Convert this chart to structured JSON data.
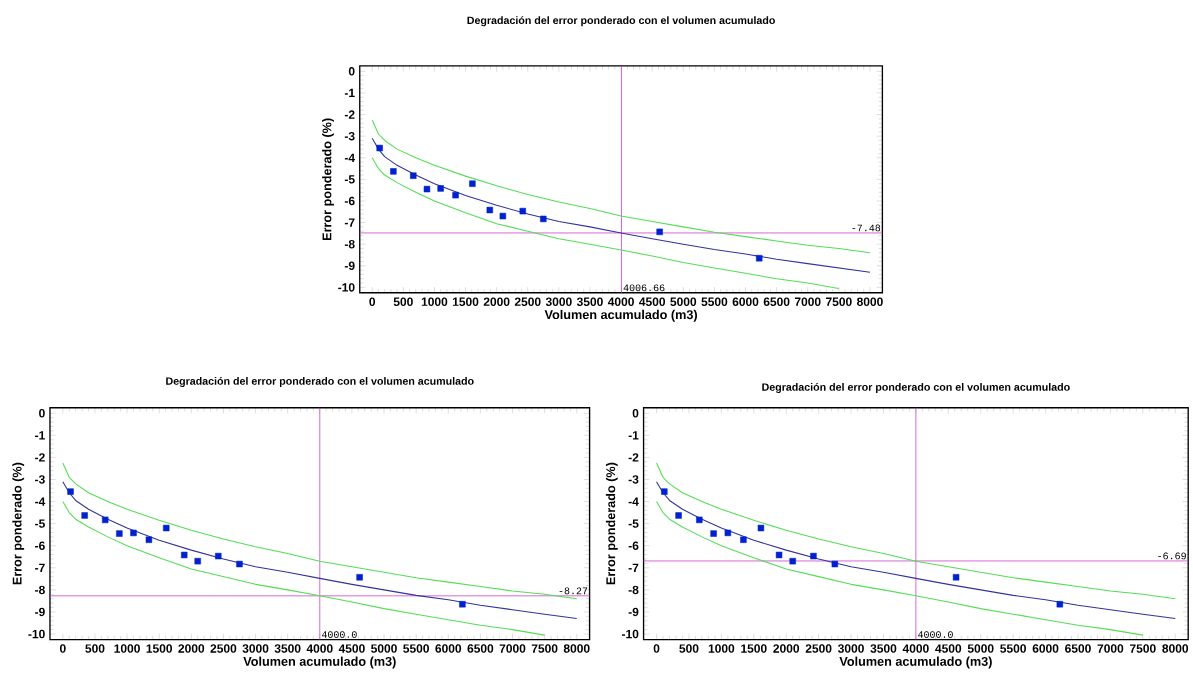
{
  "chart_data": [
    {
      "type": "scatter",
      "title": "Degradación del error ponderado con el volumen acumulado",
      "xlabel": "Volumen acumulado (m3)",
      "ylabel": "Error ponderado (%)",
      "xlim": [
        -200,
        8200
      ],
      "ylim": [
        -10.25,
        0.25
      ],
      "xticks": [
        0,
        500,
        1000,
        1500,
        2000,
        2500,
        3000,
        3500,
        4000,
        4500,
        5000,
        5500,
        6000,
        6500,
        7000,
        7500,
        8000
      ],
      "yticks": [
        -10,
        -9,
        -8,
        -7,
        -6,
        -5,
        -4,
        -3,
        -2,
        -1,
        0
      ],
      "series": [
        {
          "marker": "square",
          "color": "#0022cc",
          "x": [
            120,
            340,
            660,
            880,
            1100,
            1340,
            1610,
            1890,
            2100,
            2420,
            2750,
            4620,
            6220
          ],
          "values": [
            -3.55,
            -4.63,
            -4.83,
            -5.45,
            -5.42,
            -5.73,
            -5.2,
            -6.42,
            -6.7,
            -6.47,
            -6.83,
            -7.43,
            -8.65
          ]
        },
        {
          "type": "line",
          "color": "#333399",
          "x": [
            0,
            100,
            200,
            400,
            700,
            1000,
            1500,
            2000,
            2500,
            3000,
            3500,
            4000,
            4500,
            5000,
            5500,
            6000,
            6500,
            7000,
            7500,
            8000
          ],
          "values": [
            -3.1,
            -3.6,
            -3.95,
            -4.35,
            -4.8,
            -5.2,
            -5.75,
            -6.2,
            -6.6,
            -6.95,
            -7.2,
            -7.48,
            -7.75,
            -8.0,
            -8.25,
            -8.45,
            -8.7,
            -8.9,
            -9.1,
            -9.3
          ]
        },
        {
          "type": "line",
          "color": "#55dd55",
          "x": [
            0,
            100,
            200,
            400,
            700,
            1000,
            1500,
            2000,
            2500,
            3000,
            3500,
            4000,
            4500,
            5000,
            5500,
            6000,
            6500,
            7000,
            7500,
            8000
          ],
          "values": [
            -2.25,
            -2.9,
            -3.2,
            -3.6,
            -4.0,
            -4.35,
            -4.85,
            -5.3,
            -5.7,
            -6.05,
            -6.35,
            -6.7,
            -6.95,
            -7.2,
            -7.45,
            -7.65,
            -7.85,
            -8.05,
            -8.2,
            -8.4
          ]
        },
        {
          "type": "line",
          "color": "#55dd55",
          "x": [
            0,
            100,
            200,
            400,
            700,
            1000,
            1500,
            2000,
            2500,
            3000,
            3500,
            4000,
            4500,
            5000,
            5500,
            6000,
            6500,
            7000,
            7500
          ],
          "values": [
            -4.0,
            -4.5,
            -4.8,
            -5.15,
            -5.6,
            -6.0,
            -6.55,
            -7.05,
            -7.4,
            -7.75,
            -8.0,
            -8.27,
            -8.55,
            -8.85,
            -9.1,
            -9.35,
            -9.6,
            -9.8,
            -10.05
          ]
        }
      ],
      "ref_lines": [
        {
          "axis": "x",
          "value": 4006.66,
          "label": "4006.66",
          "color": "#cc44cc"
        },
        {
          "axis": "y",
          "value": -7.48,
          "label": "-7.48",
          "color": "#cc44cc"
        }
      ]
    },
    {
      "type": "scatter",
      "title": "Degradación del error ponderado con el volumen acumulado",
      "xlabel": "Volumen acumulado (m3)",
      "ylabel": "Error ponderado (%)",
      "xlim": [
        -200,
        8200
      ],
      "ylim": [
        -10.25,
        0.25
      ],
      "xticks": [
        0,
        500,
        1000,
        1500,
        2000,
        2500,
        3000,
        3500,
        4000,
        4500,
        5000,
        5500,
        6000,
        6500,
        7000,
        7500,
        8000
      ],
      "yticks": [
        -10,
        -9,
        -8,
        -7,
        -6,
        -5,
        -4,
        -3,
        -2,
        -1,
        0
      ],
      "series": [
        {
          "marker": "square",
          "color": "#0022cc",
          "x": [
            120,
            340,
            660,
            880,
            1100,
            1340,
            1610,
            1890,
            2100,
            2420,
            2750,
            4620,
            6220
          ],
          "values": [
            -3.55,
            -4.63,
            -4.83,
            -5.45,
            -5.42,
            -5.73,
            -5.2,
            -6.42,
            -6.7,
            -6.47,
            -6.83,
            -7.43,
            -8.65
          ]
        },
        {
          "type": "line",
          "color": "#333399",
          "x": [
            0,
            100,
            200,
            400,
            700,
            1000,
            1500,
            2000,
            2500,
            3000,
            3500,
            4000,
            4500,
            5000,
            5500,
            6000,
            6500,
            7000,
            7500,
            8000
          ],
          "values": [
            -3.1,
            -3.6,
            -3.95,
            -4.35,
            -4.8,
            -5.2,
            -5.75,
            -6.2,
            -6.6,
            -6.95,
            -7.2,
            -7.48,
            -7.75,
            -8.0,
            -8.25,
            -8.45,
            -8.7,
            -8.9,
            -9.1,
            -9.3
          ]
        },
        {
          "type": "line",
          "color": "#55dd55",
          "x": [
            0,
            100,
            200,
            400,
            700,
            1000,
            1500,
            2000,
            2500,
            3000,
            3500,
            4000,
            4500,
            5000,
            5500,
            6000,
            6500,
            7000,
            7500,
            8000
          ],
          "values": [
            -2.25,
            -2.9,
            -3.2,
            -3.6,
            -4.0,
            -4.35,
            -4.85,
            -5.3,
            -5.7,
            -6.05,
            -6.35,
            -6.7,
            -6.95,
            -7.2,
            -7.45,
            -7.65,
            -7.85,
            -8.05,
            -8.2,
            -8.4
          ]
        },
        {
          "type": "line",
          "color": "#55dd55",
          "x": [
            0,
            100,
            200,
            400,
            700,
            1000,
            1500,
            2000,
            2500,
            3000,
            3500,
            4000,
            4500,
            5000,
            5500,
            6000,
            6500,
            7000,
            7500
          ],
          "values": [
            -4.0,
            -4.5,
            -4.8,
            -5.15,
            -5.6,
            -6.0,
            -6.55,
            -7.05,
            -7.4,
            -7.75,
            -8.0,
            -8.27,
            -8.55,
            -8.85,
            -9.1,
            -9.35,
            -9.6,
            -9.8,
            -10.05
          ]
        }
      ],
      "ref_lines": [
        {
          "axis": "x",
          "value": 4000,
          "label": "4000.0",
          "color": "#cc44cc"
        },
        {
          "axis": "y",
          "value": -8.27,
          "label": "-8.27",
          "color": "#cc44cc"
        }
      ]
    },
    {
      "type": "scatter",
      "title": "Degradación del error ponderado con el volumen acumulado",
      "xlabel": "Volumen acumulado (m3)",
      "ylabel": "Error ponderado (%)",
      "xlim": [
        -200,
        8200
      ],
      "ylim": [
        -10.25,
        0.25
      ],
      "xticks": [
        0,
        500,
        1000,
        1500,
        2000,
        2500,
        3000,
        3500,
        4000,
        4500,
        5000,
        5500,
        6000,
        6500,
        7000,
        7500,
        8000
      ],
      "yticks": [
        -10,
        -9,
        -8,
        -7,
        -6,
        -5,
        -4,
        -3,
        -2,
        -1,
        0
      ],
      "series": [
        {
          "marker": "square",
          "color": "#0022cc",
          "x": [
            120,
            340,
            660,
            880,
            1100,
            1340,
            1610,
            1890,
            2100,
            2420,
            2750,
            4620,
            6220
          ],
          "values": [
            -3.55,
            -4.63,
            -4.83,
            -5.45,
            -5.42,
            -5.73,
            -5.2,
            -6.42,
            -6.7,
            -6.47,
            -6.83,
            -7.43,
            -8.65
          ]
        },
        {
          "type": "line",
          "color": "#333399",
          "x": [
            0,
            100,
            200,
            400,
            700,
            1000,
            1500,
            2000,
            2500,
            3000,
            3500,
            4000,
            4500,
            5000,
            5500,
            6000,
            6500,
            7000,
            7500,
            8000
          ],
          "values": [
            -3.1,
            -3.6,
            -3.95,
            -4.35,
            -4.8,
            -5.2,
            -5.75,
            -6.2,
            -6.6,
            -6.95,
            -7.2,
            -7.48,
            -7.75,
            -8.0,
            -8.25,
            -8.45,
            -8.7,
            -8.9,
            -9.1,
            -9.3
          ]
        },
        {
          "type": "line",
          "color": "#55dd55",
          "x": [
            0,
            100,
            200,
            400,
            700,
            1000,
            1500,
            2000,
            2500,
            3000,
            3500,
            4000,
            4500,
            5000,
            5500,
            6000,
            6500,
            7000,
            7500,
            8000
          ],
          "values": [
            -2.25,
            -2.9,
            -3.2,
            -3.6,
            -4.0,
            -4.35,
            -4.85,
            -5.3,
            -5.7,
            -6.05,
            -6.35,
            -6.7,
            -6.95,
            -7.2,
            -7.45,
            -7.65,
            -7.85,
            -8.05,
            -8.2,
            -8.4
          ]
        },
        {
          "type": "line",
          "color": "#55dd55",
          "x": [
            0,
            100,
            200,
            400,
            700,
            1000,
            1500,
            2000,
            2500,
            3000,
            3500,
            4000,
            4500,
            5000,
            5500,
            6000,
            6500,
            7000,
            7500
          ],
          "values": [
            -4.0,
            -4.5,
            -4.8,
            -5.15,
            -5.6,
            -6.0,
            -6.55,
            -7.05,
            -7.4,
            -7.75,
            -8.0,
            -8.27,
            -8.55,
            -8.85,
            -9.1,
            -9.35,
            -9.6,
            -9.8,
            -10.05
          ]
        }
      ],
      "ref_lines": [
        {
          "axis": "x",
          "value": 4000,
          "label": "4000.0",
          "color": "#cc44cc"
        },
        {
          "axis": "y",
          "value": -6.69,
          "label": "-6.69",
          "color": "#cc44cc"
        }
      ]
    }
  ]
}
